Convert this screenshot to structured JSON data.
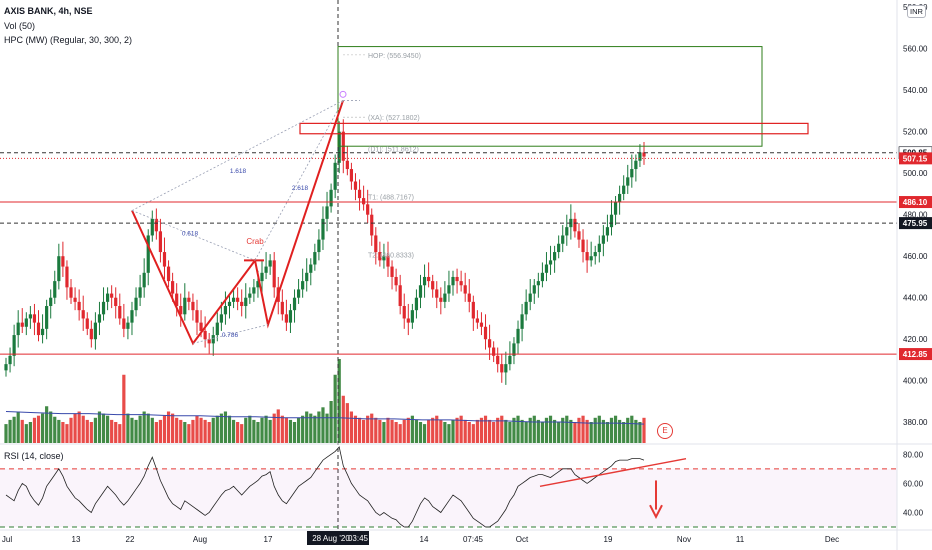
{
  "header": {
    "symbol_line": "AXIS BANK, 4h, NSE",
    "vol_line": "Vol (50)",
    "hpc_line": "HPC (MW) (Regular, 30, 300, 2)",
    "rsi_line": "RSI (14, close)",
    "currency": "INR"
  },
  "colors": {
    "up": "#1b7a3e",
    "down": "#e0282e",
    "pattern": "#e02020",
    "box": "#2e7d1a",
    "ma": "#3949ab",
    "rsi": "#222222"
  },
  "chart_data": [
    {
      "type": "candlestick",
      "title": "AXIS BANK, 4h, NSE",
      "ylim": [
        370,
        582
      ],
      "y_ticks": [
        380,
        400,
        420,
        440,
        460,
        480,
        500,
        520,
        540,
        560,
        580
      ],
      "y_tick_labels": [
        "380.00",
        "400.00",
        "420.00",
        "440.00",
        "460.00",
        "480.00",
        "500.00",
        "520.00",
        "540.00",
        "560.00",
        "580.00"
      ],
      "x_tick_labels": [
        "Jul",
        "13",
        "22",
        "Aug",
        "17",
        "28 Aug '20",
        "14",
        "Oct",
        "19",
        "Nov",
        "11",
        "Dec"
      ],
      "crosshair_x_label": "28 Aug '20",
      "crosshair_time_label": "03:45",
      "extra_x_label": "07:45",
      "close_series": [
        408,
        412,
        422,
        428,
        426,
        430,
        432,
        428,
        422,
        425,
        436,
        440,
        448,
        460,
        455,
        445,
        440,
        438,
        434,
        430,
        425,
        420,
        428,
        432,
        438,
        442,
        440,
        436,
        430,
        425,
        428,
        434,
        440,
        445,
        452,
        470,
        478,
        472,
        462,
        455,
        448,
        442,
        436,
        432,
        440,
        438,
        434,
        428,
        424,
        420,
        418,
        422,
        428,
        432,
        436,
        438,
        440,
        438,
        436,
        440,
        442,
        445,
        448,
        452,
        455,
        458,
        445,
        438,
        432,
        428,
        434,
        440,
        444,
        448,
        452,
        456,
        462,
        468,
        478,
        484,
        492,
        505,
        520,
        506,
        502,
        496,
        492,
        488,
        485,
        480,
        470,
        462,
        458,
        460,
        455,
        450,
        446,
        436,
        430,
        428,
        434,
        440,
        446,
        450,
        448,
        444,
        440,
        438,
        442,
        446,
        450,
        448,
        446,
        442,
        438,
        430,
        428,
        426,
        420,
        416,
        412,
        408,
        404,
        408,
        412,
        418,
        425,
        432,
        438,
        442,
        446,
        448,
        452,
        456,
        458,
        462,
        466,
        470,
        474,
        478,
        472,
        468,
        462,
        458,
        460,
        462,
        466,
        470,
        474,
        480,
        486,
        490,
        494,
        498,
        502,
        506,
        510,
        508
      ],
      "volume_series": [
        18,
        22,
        25,
        30,
        22,
        18,
        20,
        24,
        26,
        28,
        35,
        30,
        25,
        22,
        20,
        18,
        24,
        28,
        30,
        26,
        22,
        20,
        24,
        30,
        28,
        26,
        22,
        20,
        18,
        65,
        28,
        24,
        22,
        26,
        30,
        28,
        24,
        20,
        22,
        26,
        30,
        28,
        24,
        22,
        20,
        18,
        22,
        26,
        24,
        22,
        20,
        24,
        26,
        28,
        30,
        26,
        22,
        20,
        18,
        24,
        26,
        22,
        20,
        24,
        26,
        22,
        28,
        32,
        26,
        24,
        22,
        20,
        24,
        26,
        30,
        28,
        26,
        30,
        34,
        28,
        40,
        65,
        80,
        45,
        38,
        30,
        26,
        24,
        22,
        26,
        28,
        24,
        22,
        20,
        24,
        22,
        20,
        18,
        22,
        24,
        26,
        22,
        20,
        18,
        22,
        24,
        26,
        22,
        20,
        18,
        22,
        24,
        26,
        22,
        20,
        18,
        22,
        24,
        26,
        22,
        20,
        24,
        26,
        22,
        20,
        24,
        26,
        22,
        20,
        24,
        26,
        22,
        20,
        24,
        26,
        22,
        20,
        24,
        26,
        22,
        20,
        24,
        26,
        22,
        20,
        24,
        26,
        22,
        20,
        24,
        26,
        22,
        20,
        24,
        26,
        22,
        20,
        24
      ],
      "volume_ma_series": [
        30,
        29,
        28,
        28,
        27,
        27,
        26,
        26,
        25,
        25,
        24,
        24,
        24,
        23,
        23,
        22,
        22,
        21,
        21,
        20,
        20,
        19,
        19,
        18
      ],
      "horizontal_levels": [
        {
          "value": 509.85,
          "label": "509.85",
          "style": "dashed",
          "color": "#333333",
          "tag_color": "#ffffff",
          "tag_text": "#131722"
        },
        {
          "value": 507.15,
          "label": "507.15",
          "style": "dotted",
          "color": "#e0282e",
          "tag_color": "#e0282e",
          "tag_text": "#ffffff"
        },
        {
          "value": 486.1,
          "label": "486.10",
          "style": "solid",
          "color": "#e0282e",
          "tag_color": "#e0282e",
          "tag_text": "#ffffff"
        },
        {
          "value": 475.95,
          "label": "475.95",
          "style": "dashed",
          "color": "#333333",
          "tag_color": "#131722",
          "tag_text": "#ffffff"
        },
        {
          "value": 412.85,
          "label": "412.85",
          "style": "solid",
          "color": "#e0282e",
          "tag_color": "#e0282e",
          "tag_text": "#ffffff"
        }
      ],
      "harmonic_pattern": {
        "name": "Crab",
        "ratio_labels": [
          "1.618",
          "0.618",
          "2.618",
          "0.786"
        ],
        "target_labels": [
          "HOP: (556.9450)",
          "(XA): (527.1802)",
          "(D1): (511.8612)",
          "T1: (488.7167)",
          "T2: (460.8333)"
        ]
      }
    },
    {
      "type": "line",
      "title": "RSI (14, close)",
      "ylim": [
        30,
        85
      ],
      "y_ticks": [
        40,
        60,
        80
      ],
      "y_tick_labels": [
        "40.00",
        "60.00",
        "80.00"
      ],
      "levels": [
        70,
        30
      ],
      "series": [
        {
          "values": [
            52,
            50,
            48,
            55,
            60,
            58,
            52,
            48,
            45,
            50,
            58,
            62,
            66,
            70,
            65,
            58,
            54,
            50,
            48,
            45,
            42,
            40,
            46,
            50,
            54,
            58,
            55,
            52,
            48,
            45,
            48,
            52,
            56,
            60,
            65,
            72,
            78,
            70,
            62,
            56,
            50,
            46,
            44,
            42,
            48,
            46,
            44,
            42,
            40,
            38,
            40,
            44,
            48,
            52,
            55,
            56,
            58,
            55,
            52,
            55,
            58,
            60,
            62,
            65,
            66,
            68,
            58,
            52,
            48,
            46,
            50,
            54,
            58,
            60,
            62,
            64,
            68,
            72,
            76,
            78,
            80,
            82,
            85,
            72,
            66,
            60,
            56,
            52,
            50,
            48,
            44,
            40,
            38,
            40,
            38,
            36,
            35,
            32,
            30,
            30,
            34,
            40,
            46,
            50,
            48,
            44,
            42,
            40,
            44,
            48,
            52,
            50,
            48,
            44,
            40,
            36,
            34,
            32,
            30,
            30,
            32,
            34,
            38,
            42,
            48,
            52,
            58,
            60,
            62,
            64,
            65,
            66,
            66,
            65,
            64,
            66,
            68,
            70,
            70,
            70,
            66,
            64,
            62,
            60,
            62,
            64,
            66,
            68,
            70,
            72,
            75,
            76,
            76,
            76,
            77,
            77,
            77,
            76
          ]
        }
      ]
    }
  ]
}
